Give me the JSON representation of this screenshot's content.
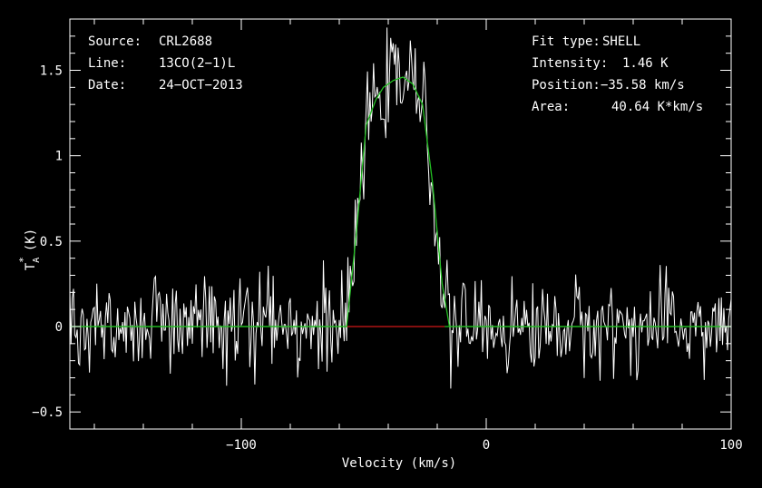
{
  "chart_data": {
    "type": "line",
    "xlabel": "Velocity (km/s)",
    "ylabel": "T",
    "ylabel_sub": "A",
    "ylabel_sup": "*",
    "ylabel_unit": "(K)",
    "xlim": [
      -170,
      100
    ],
    "ylim": [
      -0.6,
      1.8
    ],
    "x_ticks": [
      -100,
      0,
      100
    ],
    "x_tick_labels": [
      "−100",
      "0",
      "100"
    ],
    "y_ticks": [
      -0.5,
      0,
      0.5,
      1,
      1.5
    ],
    "y_tick_labels": [
      "−0.5",
      "0",
      "0.5",
      "1",
      "1.5"
    ],
    "grid": false,
    "colors": {
      "background": "#000000",
      "axes": "#ffffff",
      "spectrum": "#ffffff",
      "fit": "#22c022",
      "baseline_window": "#d01818"
    },
    "header_left": [
      {
        "label": "Source:",
        "value": "CRL2688"
      },
      {
        "label": "Line:",
        "value": "13CO(2−1)L"
      },
      {
        "label": "Date:",
        "value": "24−OCT−2013"
      }
    ],
    "header_right": [
      {
        "label": "Fit type:",
        "value": "SHELL"
      },
      {
        "label": "Intensity:",
        "value": "1.46 K"
      },
      {
        "label": "Position:",
        "value": "−35.58 km/s"
      },
      {
        "label": "Area:",
        "value": "40.64 K*km/s"
      }
    ],
    "series": [
      {
        "type": "noisy-spectrum",
        "channel_width": 0.5,
        "noise_rms": 0.13,
        "baseline": 0.0
      },
      {
        "type": "shell-fit",
        "intensity": 1.46,
        "position": -35.58,
        "area": 40.64,
        "x": [
          -170,
          -57,
          -53,
          -49,
          -45,
          -42,
          -38,
          -34,
          -30,
          -26,
          -22,
          -18,
          -15,
          100
        ],
        "y": [
          0,
          0,
          0.55,
          1.18,
          1.33,
          1.4,
          1.44,
          1.46,
          1.42,
          1.3,
          0.85,
          0.25,
          0,
          0
        ]
      },
      {
        "type": "baseline-window",
        "x": [
          -57,
          -17
        ],
        "y": [
          0,
          0
        ]
      }
    ]
  }
}
